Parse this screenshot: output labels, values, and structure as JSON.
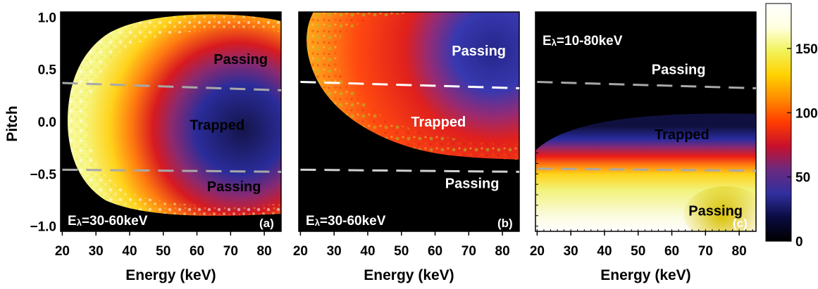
{
  "chart_data": {
    "type": "heatmap",
    "shared": {
      "ylabel": "Pitch",
      "y_ticks": [
        "1.0",
        "0.5",
        "0.0",
        "−0.5",
        "−1.0"
      ],
      "y_tick_values": [
        1.0,
        0.5,
        0.0,
        -0.5,
        -1.0
      ],
      "ylim": [
        -1.05,
        1.05
      ],
      "colorbar": {
        "ticks": [
          "150",
          "100",
          "50",
          "0"
        ],
        "tick_values": [
          150,
          100,
          50,
          0
        ],
        "range": [
          0,
          185
        ],
        "colors": [
          "#000000",
          "#0a0a40",
          "#3030a0",
          "#6a2a80",
          "#c8102c",
          "#ff3b00",
          "#ff8c00",
          "#ffd200",
          "#f2f25a",
          "#ffffe0",
          "#ffffff"
        ]
      }
    },
    "panels": [
      {
        "id": "a",
        "tag": "(a)",
        "xlabel": "Energy (keV)",
        "x_ticks": [
          "20",
          "30",
          "40",
          "50",
          "60",
          "70",
          "80"
        ],
        "x_tick_values": [
          20,
          30,
          40,
          50,
          60,
          70,
          80
        ],
        "xlim": [
          19.5,
          85
        ],
        "elambda_prefix": "E",
        "elambda_sub": "λ",
        "elambda_range": "=30-60keV",
        "labels": [
          {
            "text": "Passing",
            "energy": 73,
            "pitch": 0.6
          },
          {
            "text": "Trapped",
            "energy": 66,
            "pitch": -0.03
          },
          {
            "text": "Passing",
            "energy": 71,
            "pitch": -0.62
          }
        ],
        "boundaries": [
          {
            "energy": [
              20,
              85
            ],
            "pitch": [
              0.37,
              0.3
            ]
          },
          {
            "energy": [
              20,
              85
            ],
            "pitch": [
              -0.46,
              -0.48
            ]
          }
        ]
      },
      {
        "id": "b",
        "tag": "(b)",
        "xlabel": "Energy (keV)",
        "x_ticks": [
          "20",
          "30",
          "40",
          "50",
          "60",
          "70",
          "80"
        ],
        "x_tick_values": [
          20,
          30,
          40,
          50,
          60,
          70,
          80
        ],
        "xlim": [
          19.5,
          85
        ],
        "elambda_prefix": "E",
        "elambda_sub": "λ",
        "elambda_range": "=30-60keV",
        "labels": [
          {
            "text": "Passing",
            "energy": 73,
            "pitch": 0.68
          },
          {
            "text": "Trapped",
            "energy": 61,
            "pitch": 0.0
          },
          {
            "text": "Passing",
            "energy": 71,
            "pitch": -0.59
          }
        ],
        "boundaries": [
          {
            "energy": [
              20,
              85
            ],
            "pitch": [
              0.38,
              0.32
            ]
          },
          {
            "energy": [
              20,
              85
            ],
            "pitch": [
              -0.46,
              -0.48
            ]
          }
        ]
      },
      {
        "id": "c",
        "tag": "(c)",
        "xlabel": "Energy (keV)",
        "x_ticks": [
          "20",
          "30",
          "40",
          "50",
          "60",
          "70",
          "80"
        ],
        "x_tick_values": [
          20,
          30,
          40,
          50,
          60,
          70,
          80
        ],
        "xlim": [
          19.5,
          85
        ],
        "elambda_prefix": "E",
        "elambda_sub": "λ",
        "elambda_range": "=10-80keV",
        "labels": [
          {
            "text": "Passing",
            "energy": 62,
            "pitch": 0.5
          },
          {
            "text": "Trapped",
            "energy": 63,
            "pitch": -0.12
          },
          {
            "text": "Passing",
            "energy": 73,
            "pitch": -0.85
          }
        ],
        "boundaries": [
          {
            "energy": [
              20,
              85
            ],
            "pitch": [
              0.38,
              0.32
            ]
          },
          {
            "energy": [
              20,
              85
            ],
            "pitch": [
              -0.45,
              -0.47
            ]
          }
        ]
      }
    ]
  }
}
